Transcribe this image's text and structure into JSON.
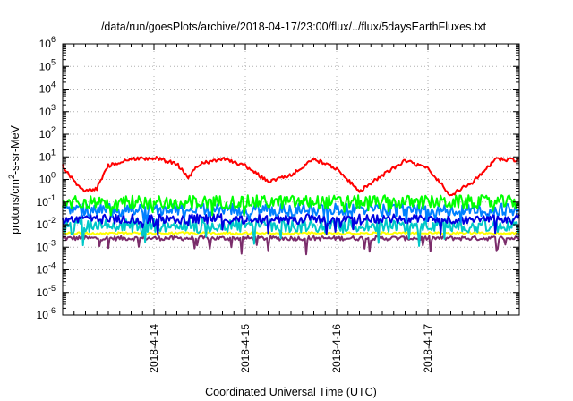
{
  "chart_data": {
    "type": "line",
    "title": "/data/run/goesPlots/archive/2018-04-17/23:00/flux/../flux/5daysEarthFluxes.txt",
    "xlabel": "Coordinated Universal Time (UTC)",
    "ylabel_parts": [
      "protons/cm",
      "2",
      "-s-sr-MeV"
    ],
    "x_range": [
      "2018-04-13 00:00",
      "2018-04-18 00:00"
    ],
    "x_ticks": [
      "2018-4-14",
      "2018-4-15",
      "2018-4-16",
      "2018-4-17"
    ],
    "y_scale": "log",
    "ylim": [
      1e-06,
      1000000.0
    ],
    "y_ticks": [
      {
        "base": "10",
        "exp": "-6"
      },
      {
        "base": "10",
        "exp": "-5"
      },
      {
        "base": "10",
        "exp": "-4"
      },
      {
        "base": "10",
        "exp": "-3"
      },
      {
        "base": "10",
        "exp": "-2"
      },
      {
        "base": "10",
        "exp": "-1"
      },
      {
        "base": "10",
        "exp": "0"
      },
      {
        "base": "10",
        "exp": "1"
      },
      {
        "base": "10",
        "exp": "2"
      },
      {
        "base": "10",
        "exp": "3"
      },
      {
        "base": "10",
        "exp": "4"
      },
      {
        "base": "10",
        "exp": "5"
      },
      {
        "base": "10",
        "exp": "6"
      }
    ],
    "grid": true,
    "series": [
      {
        "color": "#7b2d6b",
        "level": 0.0025,
        "spread": 0.1,
        "dips": 0.45
      },
      {
        "color": "#ffff00",
        "level": 0.0042,
        "spread": 0.05,
        "dips": 0.0
      },
      {
        "color": "#00c8c8",
        "level": 0.009,
        "spread": 0.3,
        "dips": 0.55
      },
      {
        "color": "#0000e0",
        "level": 0.018,
        "spread": 0.22,
        "dips": 0.45
      },
      {
        "color": "#0080ff",
        "level": 0.045,
        "spread": 0.28,
        "dips": 0.35
      },
      {
        "color": "#00ff00",
        "level": 0.1,
        "spread": 0.3,
        "dips": 0.25
      },
      {
        "color": "#ff0000",
        "points": [
          [
            "2018-04-13 00:00",
            4
          ],
          [
            "2018-04-13 03:00",
            0.8
          ],
          [
            "2018-04-13 06:00",
            0.3
          ],
          [
            "2018-04-13 09:00",
            0.4
          ],
          [
            "2018-04-13 12:00",
            4
          ],
          [
            "2018-04-13 18:00",
            8
          ],
          [
            "2018-04-14 00:00",
            9
          ],
          [
            "2018-04-14 06:00",
            5
          ],
          [
            "2018-04-14 09:00",
            1.2
          ],
          [
            "2018-04-14 12:00",
            5
          ],
          [
            "2018-04-14 18:00",
            8
          ],
          [
            "2018-04-15 00:00",
            4
          ],
          [
            "2018-04-15 06:00",
            0.8
          ],
          [
            "2018-04-15 12:00",
            1.5
          ],
          [
            "2018-04-15 18:00",
            8
          ],
          [
            "2018-04-16 00:00",
            3
          ],
          [
            "2018-04-16 06:00",
            0.3
          ],
          [
            "2018-04-16 12:00",
            1.5
          ],
          [
            "2018-04-16 18:00",
            7
          ],
          [
            "2018-04-17 00:00",
            3
          ],
          [
            "2018-04-17 06:00",
            0.2
          ],
          [
            "2018-04-17 12:00",
            0.8
          ],
          [
            "2018-04-17 18:00",
            8
          ],
          [
            "2018-04-18 00:00",
            7
          ]
        ]
      }
    ]
  }
}
